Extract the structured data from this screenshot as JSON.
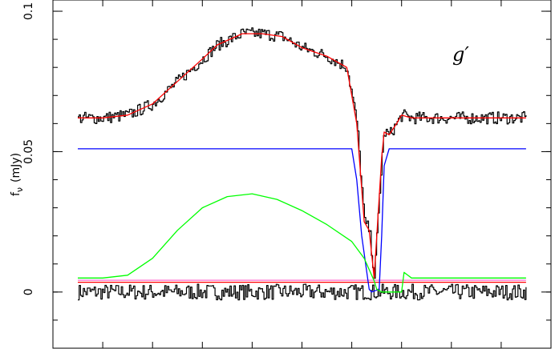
{
  "chart_data": {
    "type": "line",
    "title": "",
    "band_label": "g′",
    "ylabel": "f_ν (mJy)",
    "ylabel_main": "f",
    "ylabel_sub": "ν",
    "ylabel_unit": "(mJy)",
    "xlabel": "",
    "xlim": [
      0,
      1
    ],
    "ylim": [
      -0.02,
      0.104
    ],
    "yticks": [
      0,
      0.05,
      0.1
    ],
    "ytick_labels": [
      "0",
      "0.05",
      "0.1"
    ],
    "xticks": [
      0.1,
      0.2,
      0.3,
      0.4,
      0.5,
      0.6,
      0.7,
      0.8,
      0.9
    ],
    "grid": false,
    "series": [
      {
        "key": "observed",
        "color": "#000000",
        "style": "step",
        "x": [
          0.05,
          0.1,
          0.15,
          0.2,
          0.25,
          0.3,
          0.33,
          0.38,
          0.42,
          0.46,
          0.5,
          0.55,
          0.59,
          0.61,
          0.625,
          0.635,
          0.645,
          0.66,
          0.665,
          0.675,
          0.69,
          0.7,
          0.72,
          0.8,
          0.9,
          0.95
        ],
        "y": [
          0.062,
          0.062,
          0.063,
          0.067,
          0.075,
          0.083,
          0.088,
          0.092,
          0.092,
          0.091,
          0.087,
          0.084,
          0.08,
          0.06,
          0.025,
          0.022,
          0.005,
          0.048,
          0.057,
          0.056,
          0.06,
          0.063,
          0.062,
          0.062,
          0.062,
          0.062
        ]
      },
      {
        "key": "model",
        "color": "#ff0000",
        "x": [
          0.05,
          0.1,
          0.15,
          0.2,
          0.25,
          0.3,
          0.33,
          0.38,
          0.42,
          0.46,
          0.5,
          0.55,
          0.59,
          0.61,
          0.625,
          0.635,
          0.645,
          0.66,
          0.665,
          0.675,
          0.69,
          0.7,
          0.72,
          0.8,
          0.9,
          0.95
        ],
        "y": [
          0.062,
          0.062,
          0.063,
          0.067,
          0.075,
          0.083,
          0.088,
          0.092,
          0.092,
          0.091,
          0.087,
          0.084,
          0.08,
          0.06,
          0.025,
          0.022,
          0.005,
          0.048,
          0.057,
          0.056,
          0.06,
          0.063,
          0.062,
          0.062,
          0.062,
          0.062
        ]
      },
      {
        "key": "primary",
        "color": "#0000ff",
        "x": [
          0.05,
          0.6,
          0.61,
          0.62,
          0.635,
          0.64,
          0.655,
          0.66,
          0.665,
          0.675,
          0.95
        ],
        "y": [
          0.051,
          0.051,
          0.04,
          0.02,
          0.001,
          0.0,
          0.001,
          0.02,
          0.045,
          0.051,
          0.051
        ]
      },
      {
        "key": "secondary",
        "color": "#00ff00",
        "x": [
          0.05,
          0.1,
          0.15,
          0.2,
          0.25,
          0.3,
          0.35,
          0.4,
          0.45,
          0.5,
          0.55,
          0.6,
          0.625,
          0.635,
          0.645,
          0.65,
          0.66,
          0.7,
          0.705,
          0.72,
          0.95
        ],
        "y": [
          0.005,
          0.005,
          0.006,
          0.012,
          0.022,
          0.03,
          0.034,
          0.035,
          0.033,
          0.029,
          0.024,
          0.018,
          0.012,
          0.008,
          0.004,
          0.001,
          0.0,
          0.0,
          0.007,
          0.005,
          0.005
        ]
      },
      {
        "key": "residuals",
        "color": "#000000",
        "style": "step",
        "x": [
          0.05,
          0.95
        ],
        "y": [
          0.0,
          0.0
        ]
      },
      {
        "key": "residual-reference",
        "color": "#ff0000",
        "x": [
          0.05,
          0.95
        ],
        "y": [
          0.0035,
          0.0035
        ]
      },
      {
        "key": "residual-reference-pink",
        "color": "#ff66cc",
        "x": [
          0.05,
          0.95
        ],
        "y": [
          0.0042,
          0.0042
        ]
      }
    ]
  }
}
